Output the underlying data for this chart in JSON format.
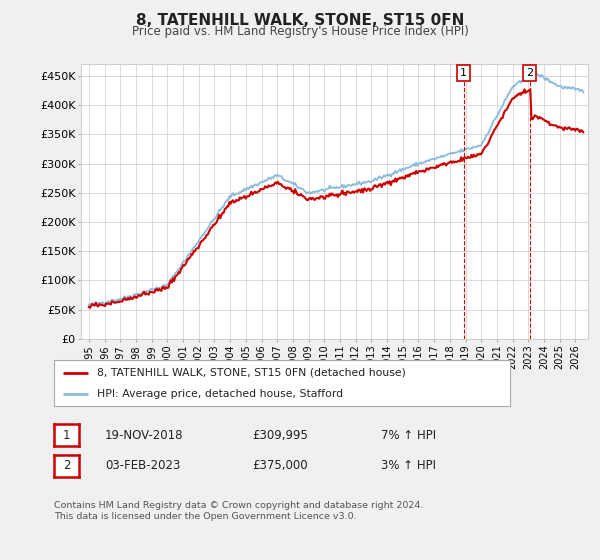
{
  "title": "8, TATENHILL WALK, STONE, ST15 0FN",
  "subtitle": "Price paid vs. HM Land Registry's House Price Index (HPI)",
  "ylabel_ticks": [
    "£0",
    "£50K",
    "£100K",
    "£150K",
    "£200K",
    "£250K",
    "£300K",
    "£350K",
    "£400K",
    "£450K"
  ],
  "ytick_vals": [
    0,
    50000,
    100000,
    150000,
    200000,
    250000,
    300000,
    350000,
    400000,
    450000
  ],
  "ylim": [
    0,
    470000
  ],
  "xlim_start": 1994.5,
  "xlim_end": 2026.8,
  "purchase1": {
    "date": "19-NOV-2018",
    "price": 309995,
    "hpi_pct": "7%",
    "label": "1",
    "x": 2018.88
  },
  "purchase2": {
    "date": "03-FEB-2023",
    "price": 375000,
    "hpi_pct": "3%",
    "label": "2",
    "x": 2023.09
  },
  "legend_property": "8, TATENHILL WALK, STONE, ST15 0FN (detached house)",
  "legend_hpi": "HPI: Average price, detached house, Stafford",
  "footnote": "Contains HM Land Registry data © Crown copyright and database right 2024.\nThis data is licensed under the Open Government Licence v3.0.",
  "line_color_property": "#cc0000",
  "line_color_hpi": "#88bbdd",
  "background_color": "#f0f0f0",
  "plot_bg_color": "#ffffff",
  "grid_color": "#cccccc"
}
